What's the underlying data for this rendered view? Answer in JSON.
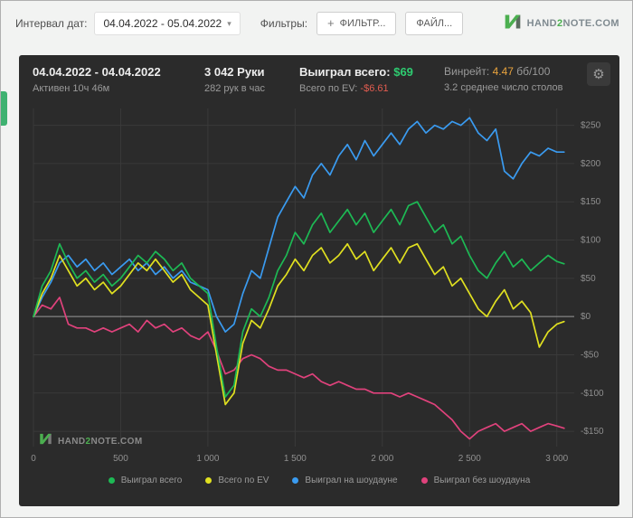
{
  "icons": {
    "plus": "+",
    "caret_down": "▾",
    "gear": "⚙"
  },
  "colors": {
    "positive": "#2ecc71",
    "negative": "#e25c50",
    "winrate": "#e8a33d",
    "brand_green": "#4caf50"
  },
  "topbar": {
    "interval_label": "Интервал дат:",
    "date_range": "04.04.2022 - 05.04.2022",
    "filters_label": "Фильтры:",
    "filter_button": "ФИЛЬТР...",
    "file_button": "ФАЙЛ...",
    "logo": {
      "part1": "HAND",
      "part2": "2",
      "part3": "NOTE.COM"
    }
  },
  "panel": {
    "header": {
      "date_range": "04.04.2022 - 04.04.2022",
      "active_time": "Активен 10ч 46м",
      "hands": "3 042 Руки",
      "hands_per_hour": "282 рук в час",
      "won_label": "Выиграл всего:",
      "won_value": "$69",
      "ev_label": "Всего по EV:",
      "ev_value": "-$6.61",
      "winrate_label": "Винрейт:",
      "winrate_value": "4.47",
      "winrate_units": "бб/100",
      "tables_avg": "3.2 среднее число столов"
    },
    "watermark": {
      "part1": "HAND",
      "part2": "2",
      "part3": "NOTE.COM"
    }
  },
  "chart_data": {
    "type": "line",
    "title": "",
    "xlabel": "",
    "ylabel": "",
    "xlim": [
      0,
      3100
    ],
    "ylim": [
      -170,
      272
    ],
    "grid": true,
    "legend_position": "bottom",
    "colors": {
      "grid": "#3a3a3a",
      "zero_line": "#999999",
      "axis_text": "#8f8f8f"
    },
    "x_ticks": [
      {
        "v": 0,
        "label": "0"
      },
      {
        "v": 500,
        "label": "500"
      },
      {
        "v": 1000,
        "label": "1 000"
      },
      {
        "v": 1500,
        "label": "1 500"
      },
      {
        "v": 2000,
        "label": "2 000"
      },
      {
        "v": 2500,
        "label": "2 500"
      },
      {
        "v": 3000,
        "label": "3 000"
      }
    ],
    "y_ticks": [
      {
        "v": 250,
        "label": "$250"
      },
      {
        "v": 200,
        "label": "$200"
      },
      {
        "v": 150,
        "label": "$150"
      },
      {
        "v": 100,
        "label": "$100"
      },
      {
        "v": 50,
        "label": "$50"
      },
      {
        "v": 0,
        "label": "$0"
      },
      {
        "v": -50,
        "label": "-$50"
      },
      {
        "v": -100,
        "label": "-$100"
      },
      {
        "v": -150,
        "label": "-$150"
      }
    ],
    "x": [
      0,
      50,
      100,
      150,
      200,
      250,
      300,
      350,
      400,
      450,
      500,
      550,
      600,
      650,
      700,
      750,
      800,
      850,
      900,
      950,
      1000,
      1050,
      1100,
      1150,
      1200,
      1250,
      1300,
      1350,
      1400,
      1450,
      1500,
      1550,
      1600,
      1650,
      1700,
      1750,
      1800,
      1850,
      1900,
      1950,
      2000,
      2050,
      2100,
      2150,
      2200,
      2250,
      2300,
      2350,
      2400,
      2450,
      2500,
      2550,
      2600,
      2650,
      2700,
      2750,
      2800,
      2850,
      2900,
      2950,
      3000,
      3042
    ],
    "series": [
      {
        "name": "Выиграл всего",
        "color": "#1db954",
        "values": [
          0,
          40,
          60,
          95,
          70,
          50,
          60,
          45,
          55,
          40,
          50,
          65,
          80,
          70,
          85,
          75,
          60,
          70,
          50,
          40,
          30,
          -40,
          -105,
          -90,
          -20,
          10,
          0,
          25,
          60,
          80,
          110,
          95,
          120,
          135,
          110,
          125,
          140,
          120,
          135,
          110,
          125,
          140,
          120,
          145,
          150,
          130,
          110,
          120,
          95,
          105,
          80,
          60,
          50,
          70,
          85,
          65,
          75,
          60,
          70,
          80,
          72,
          69
        ]
      },
      {
        "name": "Всего по EV",
        "color": "#e0e020",
        "values": [
          0,
          30,
          50,
          80,
          60,
          40,
          50,
          35,
          45,
          30,
          40,
          55,
          70,
          60,
          75,
          60,
          45,
          55,
          35,
          25,
          15,
          -50,
          -115,
          -100,
          -35,
          -5,
          -15,
          10,
          40,
          55,
          75,
          60,
          80,
          90,
          70,
          80,
          95,
          75,
          85,
          60,
          75,
          90,
          70,
          90,
          95,
          75,
          55,
          65,
          40,
          50,
          30,
          10,
          0,
          20,
          35,
          10,
          20,
          5,
          -40,
          -20,
          -10,
          -6.61
        ]
      },
      {
        "name": "Выиграл на шоудауне",
        "color": "#3a9bf0",
        "values": [
          0,
          25,
          45,
          70,
          80,
          65,
          75,
          60,
          70,
          55,
          65,
          75,
          60,
          70,
          55,
          65,
          50,
          60,
          45,
          40,
          35,
          0,
          -20,
          -10,
          30,
          60,
          50,
          90,
          130,
          150,
          170,
          155,
          185,
          200,
          185,
          210,
          225,
          205,
          230,
          210,
          225,
          240,
          225,
          245,
          255,
          240,
          250,
          245,
          255,
          250,
          260,
          240,
          230,
          245,
          190,
          180,
          200,
          215,
          210,
          220,
          215,
          215
        ]
      },
      {
        "name": "Выиграл без шоудауна",
        "color": "#e0427c",
        "values": [
          0,
          15,
          10,
          25,
          -10,
          -15,
          -15,
          -20,
          -15,
          -20,
          -15,
          -10,
          -20,
          -5,
          -15,
          -10,
          -20,
          -15,
          -25,
          -30,
          -20,
          -45,
          -75,
          -70,
          -55,
          -50,
          -55,
          -65,
          -70,
          -70,
          -75,
          -80,
          -75,
          -85,
          -90,
          -85,
          -90,
          -95,
          -95,
          -100,
          -100,
          -100,
          -105,
          -100,
          -105,
          -110,
          -115,
          -125,
          -135,
          -150,
          -160,
          -150,
          -145,
          -140,
          -150,
          -145,
          -140,
          -150,
          -145,
          -140,
          -143,
          -146
        ]
      }
    ]
  }
}
